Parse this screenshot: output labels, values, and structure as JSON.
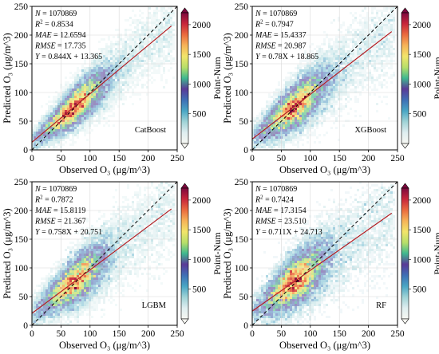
{
  "figure_layout": "2x2 grid",
  "colormap": [
    "#f7f7f2",
    "#dfeef0",
    "#9fd3d6",
    "#49a6c4",
    "#3f6fb5",
    "#5a3a97",
    "#3fb890",
    "#b7df6a",
    "#f2e56a",
    "#f6b358",
    "#ea6a3e",
    "#c7263b",
    "#7d0a3e"
  ],
  "identity_line_color": "#000000",
  "fit_line_color": "#d9262c",
  "chart_data": [
    {
      "type": "heatmap",
      "subtype": "density scatter",
      "model": "CatBoost",
      "xlabel": "Observed O₃ (μg/m^3)",
      "ylabel": "Predicted O₃ (μg/m^3)",
      "xlim": [
        0,
        250
      ],
      "ylim": [
        0,
        250
      ],
      "xticks": [
        "0",
        "50",
        "100",
        "150",
        "200",
        "250"
      ],
      "yticks": [
        "0",
        "50",
        "100",
        "150",
        "200",
        "250"
      ],
      "grid": true,
      "colorbar": {
        "label": "Point-Num",
        "range": [
          0,
          2200
        ],
        "ticks": [
          "500",
          "1000",
          "1500",
          "2000"
        ],
        "extend": "both"
      },
      "stats": {
        "N": "1070869",
        "R2": "0.8534",
        "MAE": "12.6594",
        "RMSE": "17.735",
        "equation": "0.844X + 13.365"
      },
      "stats_lines": [
        {
          "key": "N",
          "sup": "",
          "value": "= 1070869"
        },
        {
          "key": "R",
          "sup": "2",
          "value": "= 0.8534"
        },
        {
          "key": "MAE",
          "sup": "",
          "value": "= 12.6594"
        },
        {
          "key": "RMSE",
          "sup": "",
          "value": "= 17.735"
        },
        {
          "key": "Y",
          "sup": "",
          "value": "= 0.844X + 13.365"
        }
      ],
      "fit": {
        "slope": 0.844,
        "intercept": 13.365
      },
      "identity_line": true,
      "density_peak": [
        60,
        62
      ]
    },
    {
      "type": "heatmap",
      "subtype": "density scatter",
      "model": "XGBoost",
      "xlabel": "Observed O₃ (μg/m^3)",
      "ylabel": "Predicted O₃ (μg/m^3)",
      "xlim": [
        0,
        250
      ],
      "ylim": [
        0,
        250
      ],
      "xticks": [
        "0",
        "50",
        "100",
        "150",
        "200",
        "250"
      ],
      "yticks": [
        "0",
        "50",
        "100",
        "150",
        "200",
        "250"
      ],
      "grid": true,
      "colorbar": {
        "label": "Point-Num",
        "range": [
          0,
          2200
        ],
        "ticks": [
          "500",
          "1000",
          "1500",
          "2000"
        ],
        "extend": "both"
      },
      "stats": {
        "N": "1070869",
        "R2": "0.7947",
        "MAE": "15.4337",
        "RMSE": "20.987",
        "equation": "0.78X + 18.865"
      },
      "stats_lines": [
        {
          "key": "N",
          "sup": "",
          "value": "= 1070869"
        },
        {
          "key": "R",
          "sup": "2",
          "value": "= 0.7947"
        },
        {
          "key": "MAE",
          "sup": "",
          "value": "= 15.4337"
        },
        {
          "key": "RMSE",
          "sup": "",
          "value": "= 20.987"
        },
        {
          "key": "Y",
          "sup": "",
          "value": "= 0.78X + 18.865"
        }
      ],
      "fit": {
        "slope": 0.78,
        "intercept": 18.865
      },
      "identity_line": true,
      "density_peak": [
        60,
        62
      ]
    },
    {
      "type": "heatmap",
      "subtype": "density scatter",
      "model": "LGBM",
      "xlabel": "Observed O₃ (μg/m^3)",
      "ylabel": "Predicted O₃ (μg/m^3)",
      "xlim": [
        0,
        250
      ],
      "ylim": [
        0,
        250
      ],
      "xticks": [
        "0",
        "50",
        "100",
        "150",
        "200",
        "250"
      ],
      "yticks": [
        "0",
        "50",
        "100",
        "150",
        "200",
        "250"
      ],
      "grid": true,
      "colorbar": {
        "label": "Point-Num",
        "range": [
          0,
          2200
        ],
        "ticks": [
          "500",
          "1000",
          "1500",
          "2000"
        ],
        "extend": "both"
      },
      "stats": {
        "N": "1070869",
        "R2": "0.7872",
        "MAE": "15.8119",
        "RMSE": "21.367",
        "equation": "0.758X + 20.751"
      },
      "stats_lines": [
        {
          "key": "N",
          "sup": "",
          "value": "= 1070869"
        },
        {
          "key": "R",
          "sup": "2",
          "value": "= 0.7872"
        },
        {
          "key": "MAE",
          "sup": "",
          "value": "= 15.8119"
        },
        {
          "key": "RMSE",
          "sup": "",
          "value": "= 21.367"
        },
        {
          "key": "Y",
          "sup": "",
          "value": "= 0.758X + 20.751"
        }
      ],
      "fit": {
        "slope": 0.758,
        "intercept": 20.751
      },
      "identity_line": true,
      "density_peak": [
        62,
        62
      ]
    },
    {
      "type": "heatmap",
      "subtype": "density scatter",
      "model": "RF",
      "xlabel": "Observed O₃ (μg/m^3)",
      "ylabel": "Predicted O₃ (μg/m^3)",
      "xlim": [
        0,
        250
      ],
      "ylim": [
        0,
        250
      ],
      "xticks": [
        "0",
        "50",
        "100",
        "150",
        "200",
        "250"
      ],
      "yticks": [
        "0",
        "50",
        "100",
        "150",
        "200",
        "250"
      ],
      "grid": true,
      "colorbar": {
        "label": "Point-Num",
        "range": [
          0,
          2200
        ],
        "ticks": [
          "500",
          "1000",
          "1500",
          "2000"
        ],
        "extend": "both"
      },
      "stats": {
        "N": "1070869",
        "R2": "0.7424",
        "MAE": "17.3154",
        "RMSE": "23.510",
        "equation": "0.711X + 24.713"
      },
      "stats_lines": [
        {
          "key": "N",
          "sup": "",
          "value": "= 1070869"
        },
        {
          "key": "R",
          "sup": "2",
          "value": "= 0.7424"
        },
        {
          "key": "MAE",
          "sup": "",
          "value": "= 17.3154"
        },
        {
          "key": "RMSE",
          "sup": "",
          "value": "= 23.510"
        },
        {
          "key": "Y",
          "sup": "",
          "value": "= 0.711X + 24.713"
        }
      ],
      "fit": {
        "slope": 0.711,
        "intercept": 24.713
      },
      "identity_line": true,
      "density_peak": [
        60,
        60
      ]
    }
  ]
}
